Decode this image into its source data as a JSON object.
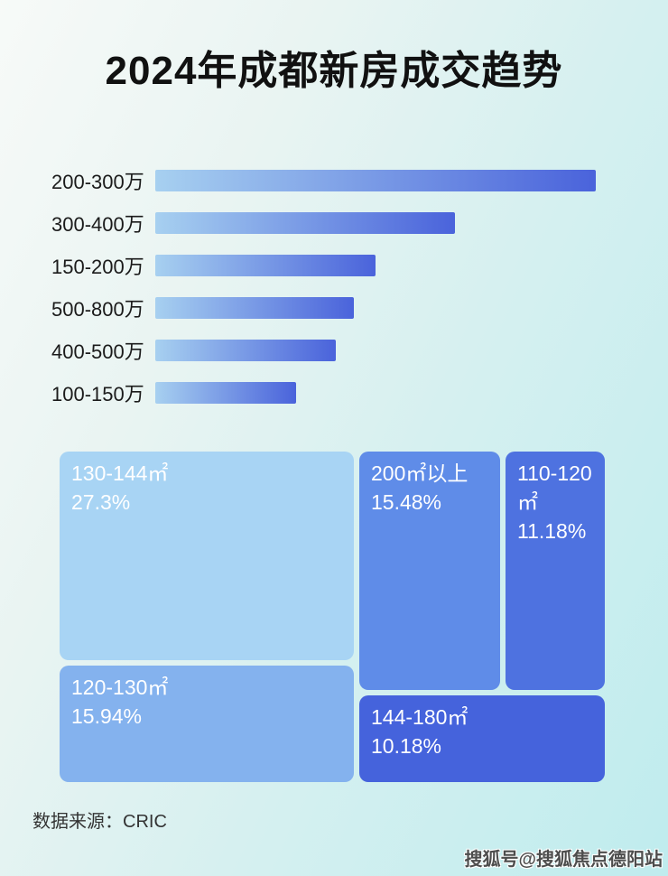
{
  "page": {
    "title": "2024年成都新房成交趋势",
    "data_source": "数据来源：CRIC",
    "watermark": "搜狐号@搜狐焦点德阳站"
  },
  "colors": {
    "background_start": "#f7faf8",
    "background_end": "#bfecee",
    "title_text": "#111111",
    "bar_label_text": "#1b1b1b",
    "bar_gradient_start": "#a7d0f0",
    "bar_gradient_end": "#4a63db",
    "treemap_text": "#ffffff",
    "source_text": "#333333"
  },
  "chart_data": [
    {
      "type": "bar",
      "orientation": "horizontal",
      "title": "2024年成都新房成交趋势",
      "categories": [
        "200-300万",
        "300-400万",
        "150-200万",
        "500-800万",
        "400-500万",
        "100-150万"
      ],
      "values": [
        100,
        68,
        50,
        45,
        41,
        32
      ],
      "values_note": "bars carry no numeric labels in the image; values are relative bar lengths as % of the longest bar",
      "xlabel": "",
      "ylabel": "",
      "grid": false,
      "legend": false,
      "bar_gradient": [
        "#a7d0f0",
        "#4a63db"
      ]
    },
    {
      "type": "treemap",
      "title": "",
      "legend": false,
      "cells": [
        {
          "label": "130-144㎡",
          "value": 27.3,
          "value_text": "27.3%",
          "color": "#a8d4f4"
        },
        {
          "label": "120-130㎡",
          "value": 15.94,
          "value_text": "15.94%",
          "color": "#84b2ee"
        },
        {
          "label": "200㎡以上",
          "value": 15.48,
          "value_text": "15.48%",
          "color": "#5f8ce8"
        },
        {
          "label": "110-120㎡",
          "value": 11.18,
          "value_text": "11.18%",
          "color": "#4e72e0"
        },
        {
          "label": "144-180㎡",
          "value": 10.18,
          "value_text": "10.18%",
          "color": "#4563dc"
        }
      ]
    }
  ]
}
